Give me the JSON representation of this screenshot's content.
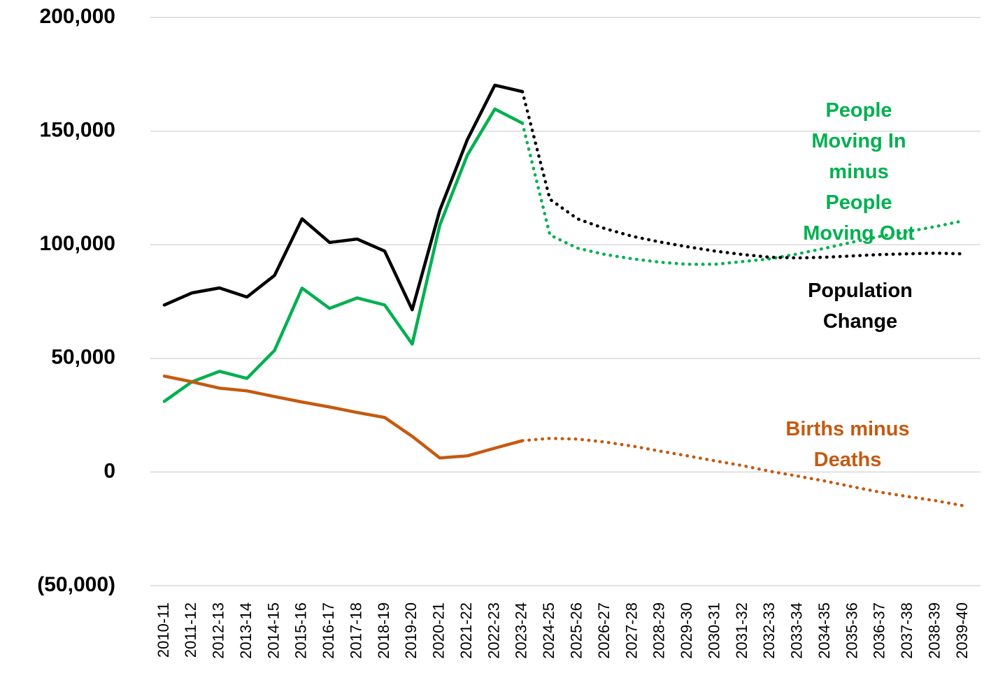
{
  "chart_data": {
    "type": "line",
    "categories": [
      "2010-11",
      "2011-12",
      "2012-13",
      "2013-14",
      "2014-15",
      "2015-16",
      "2016-17",
      "2017-18",
      "2018-19",
      "2019-20",
      "2020-21",
      "2021-22",
      "2022-23",
      "2023-24",
      "2024-25",
      "2025-26",
      "2026-27",
      "2027-28",
      "2028-29",
      "2029-30",
      "2030-31",
      "2031-32",
      "2032-33",
      "2033-34",
      "2034-35",
      "2035-36",
      "2036-37",
      "2037-38",
      "2038-39",
      "2039-40"
    ],
    "forecast_from": "2023-24",
    "ylim": [
      -50000,
      200000
    ],
    "yticks": [
      {
        "value": -50000,
        "label": "(50,000)"
      },
      0,
      {
        "value": 50000,
        "label": "50,000"
      },
      {
        "value": 100000,
        "label": "100,000"
      },
      {
        "value": 150000,
        "label": "150,000"
      },
      {
        "value": 200000,
        "label": "200,000"
      }
    ],
    "grid": true,
    "series": [
      {
        "name": "People Moving In\nminus\nPeople Moving Out",
        "color": "#00b050",
        "values": [
          31100,
          39700,
          44300,
          41200,
          53500,
          80900,
          72000,
          76600,
          73500,
          56300,
          108600,
          139400,
          159700,
          153500,
          104300,
          98500,
          95700,
          93800,
          92300,
          91400,
          91400,
          92600,
          93800,
          96000,
          98500,
          101200,
          103700,
          105800,
          108000,
          110500
        ]
      },
      {
        "name": "Population Change",
        "color": "#000000",
        "values": [
          73500,
          78800,
          81000,
          77000,
          86500,
          111400,
          101000,
          102500,
          97200,
          71400,
          115100,
          146200,
          170200,
          167400,
          120000,
          111400,
          107100,
          103700,
          101200,
          99100,
          97200,
          95700,
          94500,
          94200,
          94500,
          95100,
          95700,
          96000,
          96300,
          96000
        ]
      },
      {
        "name": "Births minus Deaths",
        "color": "#c55a11",
        "values": [
          42200,
          39700,
          36900,
          35700,
          33200,
          30800,
          28600,
          26200,
          24000,
          15700,
          6200,
          7100,
          10500,
          13800,
          14800,
          14500,
          13200,
          11400,
          9200,
          7100,
          4900,
          2800,
          300,
          -1800,
          -4000,
          -6500,
          -8900,
          -10800,
          -12600,
          -14800
        ]
      }
    ]
  }
}
